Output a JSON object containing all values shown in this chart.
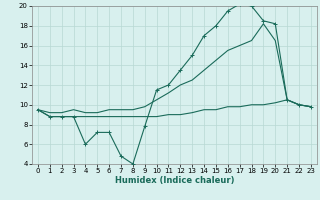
{
  "xlabel": "Humidex (Indice chaleur)",
  "x_values": [
    0,
    1,
    2,
    3,
    4,
    5,
    6,
    7,
    8,
    9,
    10,
    11,
    12,
    13,
    14,
    15,
    16,
    17,
    18,
    19,
    20,
    21,
    22,
    23
  ],
  "line1_y": [
    9.5,
    8.8,
    8.8,
    8.8,
    6.0,
    7.2,
    7.2,
    4.8,
    4.0,
    7.8,
    11.5,
    12.0,
    13.5,
    15.0,
    17.0,
    18.0,
    19.5,
    20.2,
    20.0,
    18.5,
    18.2,
    10.5,
    10.0,
    9.8
  ],
  "line2_y": [
    9.5,
    8.8,
    8.8,
    8.8,
    8.8,
    8.8,
    8.8,
    8.8,
    8.8,
    8.8,
    8.8,
    9.0,
    9.0,
    9.2,
    9.5,
    9.5,
    9.8,
    9.8,
    10.0,
    10.0,
    10.2,
    10.5,
    10.0,
    9.8
  ],
  "line3_y": [
    9.5,
    9.2,
    9.2,
    9.5,
    9.2,
    9.2,
    9.5,
    9.5,
    9.5,
    9.8,
    10.5,
    11.2,
    12.0,
    12.5,
    13.5,
    14.5,
    15.5,
    16.0,
    16.5,
    18.2,
    16.5,
    10.5,
    10.0,
    9.8
  ],
  "line_color": "#1a6b5a",
  "bg_color": "#d8f0ee",
  "grid_color": "#b8d8d4",
  "ylim": [
    4,
    20
  ],
  "xlim": [
    -0.5,
    23.5
  ],
  "yticks": [
    4,
    6,
    8,
    10,
    12,
    14,
    16,
    18,
    20
  ],
  "xticks": [
    0,
    1,
    2,
    3,
    4,
    5,
    6,
    7,
    8,
    9,
    10,
    11,
    12,
    13,
    14,
    15,
    16,
    17,
    18,
    19,
    20,
    21,
    22,
    23
  ]
}
